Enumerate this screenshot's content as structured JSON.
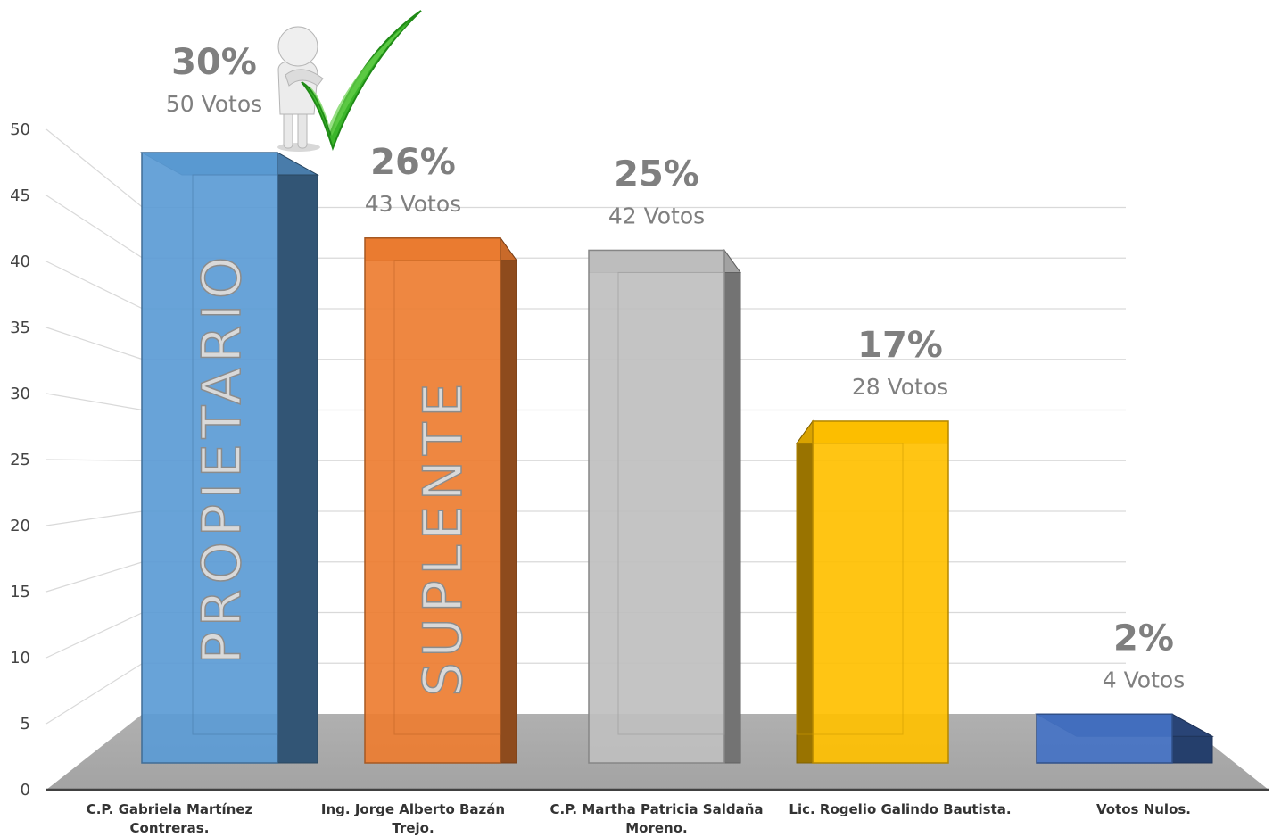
{
  "chart_data": {
    "type": "bar",
    "title": "",
    "xlabel": "",
    "ylabel": "",
    "ylim": [
      0,
      50
    ],
    "yticks": [
      0,
      5,
      10,
      15,
      20,
      25,
      30,
      35,
      40,
      45,
      50
    ],
    "grid": true,
    "categories": [
      [
        "C.P. Gabriela Martínez",
        "Contreras."
      ],
      [
        "Ing. Jorge Alberto Bazán",
        "Trejo."
      ],
      [
        "C.P. Martha Patricia Saldaña",
        "Moreno."
      ],
      [
        "Lic. Rogelio Galindo Bautista."
      ],
      [
        "Votos Nulos."
      ]
    ],
    "values": [
      50,
      43,
      42,
      28,
      4
    ],
    "percent_labels": [
      "30%",
      "26%",
      "25%",
      "17%",
      "2%"
    ],
    "vote_labels": [
      "50 Votos",
      "43 Votos",
      "42 Votos",
      "28 Votos",
      "4 Votos"
    ],
    "bar_labels": [
      "PROPIETARIO",
      "SUPLENTE",
      "",
      "",
      ""
    ],
    "colors": [
      "#5b9bd5",
      "#ed7d31",
      "#bfbfbf",
      "#ffc000",
      "#4472c4"
    ],
    "annotation_icons": [
      "person-figure-icon",
      "green-checkmark-icon"
    ]
  }
}
